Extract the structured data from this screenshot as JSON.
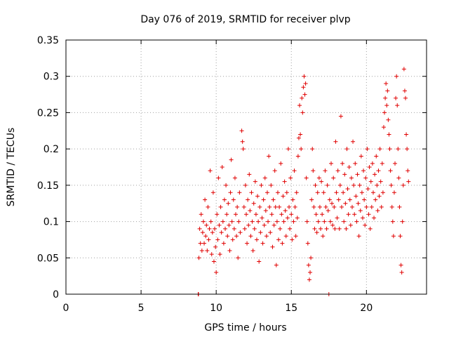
{
  "chart_data": {
    "type": "scatter",
    "title": "Day 076 of 2019, SRMTID for receiver plvp",
    "xlabel": "GPS time / hours",
    "ylabel": "SRMTID / TECUs",
    "xlim": [
      0,
      24
    ],
    "ylim": [
      0,
      0.35
    ],
    "xticks": [
      0,
      5,
      10,
      15,
      20
    ],
    "yticks": [
      0,
      0.05,
      0.1,
      0.15,
      0.2,
      0.25,
      0.3,
      0.35
    ],
    "ytick_labels": [
      "0",
      "0.05",
      "0.1",
      "0.15",
      "0.2",
      "0.25",
      "0.3",
      "0.35"
    ],
    "grid": true,
    "marker": "+",
    "color": "#e00000",
    "points": [
      [
        8.8,
        0.0
      ],
      [
        8.82,
        0.0
      ],
      [
        8.85,
        0.05
      ],
      [
        8.9,
        0.09
      ],
      [
        8.95,
        0.07
      ],
      [
        9.0,
        0.11
      ],
      [
        9.05,
        0.06
      ],
      [
        9.1,
        0.085
      ],
      [
        9.15,
        0.1
      ],
      [
        9.2,
        0.07
      ],
      [
        9.25,
        0.13
      ],
      [
        9.3,
        0.08
      ],
      [
        9.35,
        0.095
      ],
      [
        9.4,
        0.06
      ],
      [
        9.45,
        0.12
      ],
      [
        9.5,
        0.075
      ],
      [
        9.55,
        0.09
      ],
      [
        9.6,
        0.17
      ],
      [
        9.65,
        0.1
      ],
      [
        9.7,
        0.055
      ],
      [
        9.75,
        0.085
      ],
      [
        9.8,
        0.14
      ],
      [
        9.85,
        0.045
      ],
      [
        9.9,
        0.09
      ],
      [
        9.95,
        0.065
      ],
      [
        10.0,
        0.03
      ],
      [
        10.05,
        0.11
      ],
      [
        10.1,
        0.075
      ],
      [
        10.15,
        0.16
      ],
      [
        10.2,
        0.095
      ],
      [
        10.25,
        0.055
      ],
      [
        10.3,
        0.12
      ],
      [
        10.35,
        0.085
      ],
      [
        10.4,
        0.175
      ],
      [
        10.45,
        0.1
      ],
      [
        10.5,
        0.07
      ],
      [
        10.55,
        0.13
      ],
      [
        10.6,
        0.09
      ],
      [
        10.65,
        0.15
      ],
      [
        10.7,
        0.11
      ],
      [
        10.75,
        0.08
      ],
      [
        10.8,
        0.125
      ],
      [
        10.85,
        0.095
      ],
      [
        10.9,
        0.06
      ],
      [
        10.95,
        0.14
      ],
      [
        11.0,
        0.185
      ],
      [
        11.05,
        0.1
      ],
      [
        11.1,
        0.075
      ],
      [
        11.15,
        0.13
      ],
      [
        11.2,
        0.09
      ],
      [
        11.25,
        0.16
      ],
      [
        11.3,
        0.11
      ],
      [
        11.35,
        0.08
      ],
      [
        11.4,
        0.12
      ],
      [
        11.45,
        0.05
      ],
      [
        11.5,
        0.1
      ],
      [
        11.55,
        0.14
      ],
      [
        11.6,
        0.085
      ],
      [
        11.7,
        0.225
      ],
      [
        11.75,
        0.21
      ],
      [
        11.8,
        0.2
      ],
      [
        11.85,
        0.12
      ],
      [
        11.9,
        0.09
      ],
      [
        11.95,
        0.15
      ],
      [
        12.0,
        0.11
      ],
      [
        12.05,
        0.07
      ],
      [
        12.1,
        0.13
      ],
      [
        12.15,
        0.095
      ],
      [
        12.2,
        0.165
      ],
      [
        12.25,
        0.115
      ],
      [
        12.3,
        0.08
      ],
      [
        12.35,
        0.14
      ],
      [
        12.4,
        0.1
      ],
      [
        12.45,
        0.06
      ],
      [
        12.5,
        0.125
      ],
      [
        12.55,
        0.09
      ],
      [
        12.6,
        0.155
      ],
      [
        12.65,
        0.11
      ],
      [
        12.7,
        0.075
      ],
      [
        12.75,
        0.135
      ],
      [
        12.8,
        0.1
      ],
      [
        12.85,
        0.045
      ],
      [
        12.9,
        0.12
      ],
      [
        12.95,
        0.085
      ],
      [
        13.0,
        0.15
      ],
      [
        13.05,
        0.105
      ],
      [
        13.1,
        0.07
      ],
      [
        13.15,
        0.13
      ],
      [
        13.2,
        0.095
      ],
      [
        13.25,
        0.16
      ],
      [
        13.3,
        0.115
      ],
      [
        13.35,
        0.08
      ],
      [
        13.4,
        0.14
      ],
      [
        13.45,
        0.1
      ],
      [
        13.5,
        0.19
      ],
      [
        13.55,
        0.12
      ],
      [
        13.6,
        0.085
      ],
      [
        13.65,
        0.15
      ],
      [
        13.7,
        0.11
      ],
      [
        13.75,
        0.065
      ],
      [
        13.8,
        0.13
      ],
      [
        13.85,
        0.095
      ],
      [
        13.9,
        0.17
      ],
      [
        13.95,
        0.12
      ],
      [
        14.0,
        0.04
      ],
      [
        14.05,
        0.1
      ],
      [
        14.1,
        0.14
      ],
      [
        14.15,
        0.075
      ],
      [
        14.2,
        0.12
      ],
      [
        14.25,
        0.09
      ],
      [
        14.3,
        0.18
      ],
      [
        14.35,
        0.11
      ],
      [
        14.4,
        0.07
      ],
      [
        14.45,
        0.135
      ],
      [
        14.5,
        0.1
      ],
      [
        14.55,
        0.155
      ],
      [
        14.6,
        0.115
      ],
      [
        14.65,
        0.08
      ],
      [
        14.7,
        0.14
      ],
      [
        14.75,
        0.105
      ],
      [
        14.8,
        0.2
      ],
      [
        14.85,
        0.12
      ],
      [
        14.9,
        0.09
      ],
      [
        14.95,
        0.16
      ],
      [
        15.0,
        0.11
      ],
      [
        15.05,
        0.075
      ],
      [
        15.1,
        0.13
      ],
      [
        15.15,
        0.1
      ],
      [
        15.2,
        0.17
      ],
      [
        15.25,
        0.12
      ],
      [
        15.3,
        0.08
      ],
      [
        15.35,
        0.14
      ],
      [
        15.4,
        0.105
      ],
      [
        15.45,
        0.19
      ],
      [
        15.5,
        0.215
      ],
      [
        15.55,
        0.26
      ],
      [
        15.6,
        0.22
      ],
      [
        15.65,
        0.2
      ],
      [
        15.7,
        0.27
      ],
      [
        15.75,
        0.25
      ],
      [
        15.8,
        0.285
      ],
      [
        15.85,
        0.3
      ],
      [
        15.9,
        0.275
      ],
      [
        15.95,
        0.29
      ],
      [
        16.0,
        0.16
      ],
      [
        16.05,
        0.1
      ],
      [
        16.1,
        0.07
      ],
      [
        16.15,
        0.04
      ],
      [
        16.2,
        0.02
      ],
      [
        16.25,
        0.03
      ],
      [
        16.3,
        0.05
      ],
      [
        16.35,
        0.13
      ],
      [
        16.4,
        0.2
      ],
      [
        16.45,
        0.17
      ],
      [
        16.5,
        0.12
      ],
      [
        16.55,
        0.09
      ],
      [
        16.6,
        0.15
      ],
      [
        16.65,
        0.11
      ],
      [
        16.7,
        0.085
      ],
      [
        16.75,
        0.14
      ],
      [
        16.8,
        0.1
      ],
      [
        16.85,
        0.16
      ],
      [
        16.9,
        0.12
      ],
      [
        16.95,
        0.09
      ],
      [
        17.0,
        0.155
      ],
      [
        17.05,
        0.11
      ],
      [
        17.1,
        0.08
      ],
      [
        17.15,
        0.14
      ],
      [
        17.2,
        0.1
      ],
      [
        17.25,
        0.17
      ],
      [
        17.3,
        0.12
      ],
      [
        17.35,
        0.09
      ],
      [
        17.4,
        0.15
      ],
      [
        17.45,
        0.115
      ],
      [
        17.5,
        0.0
      ],
      [
        17.55,
        0.13
      ],
      [
        17.6,
        0.1
      ],
      [
        17.65,
        0.18
      ],
      [
        17.7,
        0.125
      ],
      [
        17.75,
        0.095
      ],
      [
        17.8,
        0.16
      ],
      [
        17.85,
        0.12
      ],
      [
        17.9,
        0.09
      ],
      [
        17.95,
        0.21
      ],
      [
        18.0,
        0.14
      ],
      [
        18.05,
        0.105
      ],
      [
        18.1,
        0.17
      ],
      [
        18.15,
        0.13
      ],
      [
        18.2,
        0.09
      ],
      [
        18.25,
        0.15
      ],
      [
        18.3,
        0.245
      ],
      [
        18.35,
        0.12
      ],
      [
        18.4,
        0.18
      ],
      [
        18.45,
        0.14
      ],
      [
        18.5,
        0.1
      ],
      [
        18.55,
        0.165
      ],
      [
        18.6,
        0.125
      ],
      [
        18.65,
        0.09
      ],
      [
        18.7,
        0.2
      ],
      [
        18.75,
        0.145
      ],
      [
        18.8,
        0.11
      ],
      [
        18.85,
        0.175
      ],
      [
        18.9,
        0.13
      ],
      [
        18.95,
        0.095
      ],
      [
        19.0,
        0.16
      ],
      [
        19.05,
        0.12
      ],
      [
        19.1,
        0.21
      ],
      [
        19.15,
        0.15
      ],
      [
        19.2,
        0.11
      ],
      [
        19.25,
        0.18
      ],
      [
        19.3,
        0.135
      ],
      [
        19.35,
        0.1
      ],
      [
        19.4,
        0.165
      ],
      [
        19.45,
        0.125
      ],
      [
        19.5,
        0.08
      ],
      [
        19.55,
        0.15
      ],
      [
        19.6,
        0.115
      ],
      [
        19.65,
        0.19
      ],
      [
        19.7,
        0.14
      ],
      [
        19.75,
        0.105
      ],
      [
        19.8,
        0.17
      ],
      [
        19.85,
        0.13
      ],
      [
        19.9,
        0.095
      ],
      [
        19.95,
        0.16
      ],
      [
        20.0,
        0.12
      ],
      [
        20.05,
        0.2
      ],
      [
        20.1,
        0.145
      ],
      [
        20.15,
        0.11
      ],
      [
        20.2,
        0.175
      ],
      [
        20.25,
        0.09
      ],
      [
        20.3,
        0.155
      ],
      [
        20.35,
        0.12
      ],
      [
        20.4,
        0.18
      ],
      [
        20.45,
        0.14
      ],
      [
        20.5,
        0.105
      ],
      [
        20.55,
        0.165
      ],
      [
        20.6,
        0.13
      ],
      [
        20.65,
        0.19
      ],
      [
        20.7,
        0.15
      ],
      [
        20.75,
        0.115
      ],
      [
        20.8,
        0.17
      ],
      [
        20.85,
        0.135
      ],
      [
        20.9,
        0.2
      ],
      [
        20.95,
        0.155
      ],
      [
        21.0,
        0.12
      ],
      [
        21.05,
        0.18
      ],
      [
        21.1,
        0.14
      ],
      [
        21.15,
        0.23
      ],
      [
        21.2,
        0.25
      ],
      [
        21.25,
        0.27
      ],
      [
        21.3,
        0.29
      ],
      [
        21.35,
        0.26
      ],
      [
        21.4,
        0.28
      ],
      [
        21.45,
        0.24
      ],
      [
        21.5,
        0.22
      ],
      [
        21.55,
        0.2
      ],
      [
        21.6,
        0.17
      ],
      [
        21.65,
        0.15
      ],
      [
        21.7,
        0.12
      ],
      [
        21.75,
        0.1
      ],
      [
        21.8,
        0.08
      ],
      [
        21.85,
        0.14
      ],
      [
        21.9,
        0.18
      ],
      [
        21.95,
        0.27
      ],
      [
        22.0,
        0.3
      ],
      [
        22.05,
        0.26
      ],
      [
        22.1,
        0.2
      ],
      [
        22.15,
        0.16
      ],
      [
        22.2,
        0.12
      ],
      [
        22.25,
        0.08
      ],
      [
        22.3,
        0.04
      ],
      [
        22.35,
        0.03
      ],
      [
        22.4,
        0.1
      ],
      [
        22.45,
        0.15
      ],
      [
        22.5,
        0.31
      ],
      [
        22.55,
        0.28
      ],
      [
        22.6,
        0.27
      ],
      [
        22.65,
        0.22
      ],
      [
        22.7,
        0.2
      ],
      [
        22.75,
        0.17
      ],
      [
        22.8,
        0.155
      ]
    ]
  }
}
